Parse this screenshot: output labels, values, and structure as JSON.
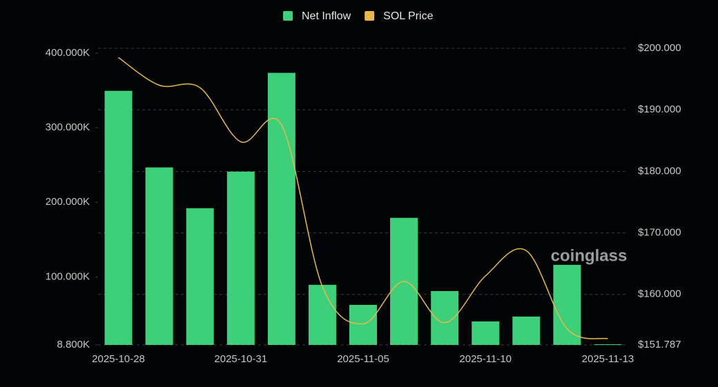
{
  "chart_data": {
    "type": "bar_line",
    "categories": [
      "2025-10-28",
      null,
      null,
      "2025-10-31",
      null,
      null,
      "2025-11-05",
      null,
      null,
      "2025-11-10",
      null,
      null,
      "2025-11-13"
    ],
    "series": [
      {
        "name": "Net Inflow",
        "color": "#3ecf7a",
        "type": "bar",
        "values": [
          349500,
          246800,
          192100,
          241200,
          373600,
          89400,
          62500,
          179200,
          81000,
          40300,
          46800,
          116200,
          9700
        ]
      },
      {
        "name": "SOL Price",
        "color": "#e8b84a",
        "type": "line",
        "axis": "y2",
        "values": [
          198.5,
          194.0,
          193.6,
          184.8,
          187.5,
          161.3,
          155.2,
          162.1,
          155.4,
          163.0,
          167.1,
          154.4,
          152.8
        ]
      }
    ],
    "ylim": [
      8800,
      406500
    ],
    "yticks": [
      {
        "value": 8800,
        "label": "8.800K"
      },
      {
        "value": 100000,
        "label": "100.000K"
      },
      {
        "value": 200000,
        "label": "200.000K"
      },
      {
        "value": 300000,
        "label": "300.000K"
      },
      {
        "value": 400000,
        "label": "400.000K"
      }
    ],
    "y2lim": [
      151.787,
      200
    ],
    "y2ticks": [
      {
        "value": 151.787,
        "label": "$151.787"
      },
      {
        "value": 160,
        "label": "$160.000"
      },
      {
        "value": 170,
        "label": "$170.000"
      },
      {
        "value": 180,
        "label": "$180.000"
      },
      {
        "value": 190,
        "label": "$190.000"
      },
      {
        "value": 200,
        "label": "$200.000"
      }
    ],
    "grid": true,
    "legend": "top",
    "watermark": "coinglass"
  }
}
